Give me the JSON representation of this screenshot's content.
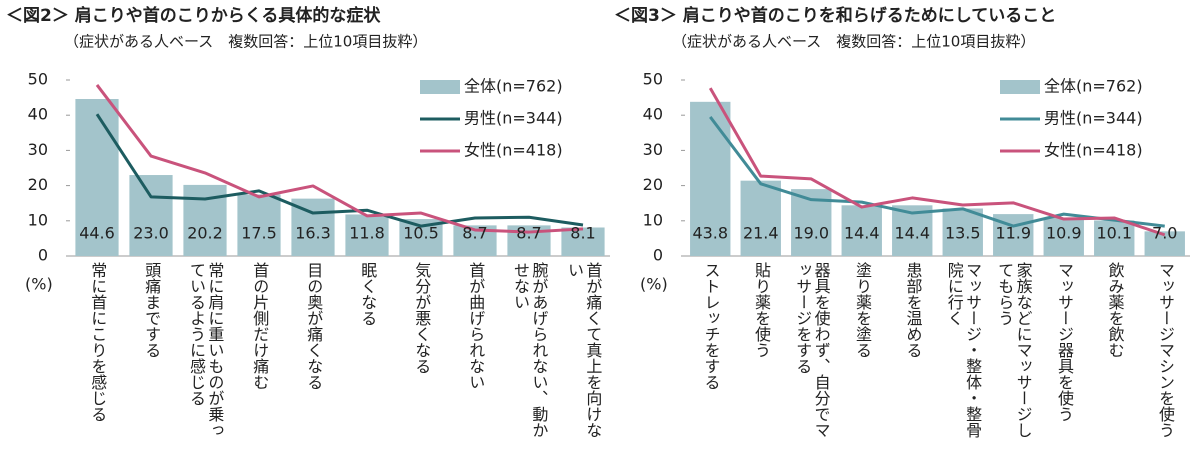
{
  "chart_data": [
    {
      "type": "combo",
      "title": "＜図2＞ 肩こりや首のこりからくる具体的な症状",
      "subtitle": "（症状がある人ベース　複数回答：上位10項目抜粋）",
      "ylabel": "(%)",
      "categories": [
        "常に首にこりを感じる",
        "頭痛までする",
        "常に肩に重いものが乗っているように感じる",
        "首の片側だけ痛む",
        "目の奥が痛くなる",
        "眠くなる",
        "気分が悪くなる",
        "首が曲げられない",
        "腕があげられない、動かせない",
        "首が痛くて真上を向けない"
      ],
      "series": [
        {
          "name": "全体(n=762)",
          "type": "bar",
          "color": "#a3c4cb",
          "values": [
            44.6,
            23.0,
            20.2,
            17.5,
            16.3,
            11.8,
            10.5,
            8.7,
            8.7,
            8.1
          ],
          "value_labels": [
            "44.6",
            "23.0",
            "20.2",
            "17.5",
            "16.3",
            "11.8",
            "10.5",
            "8.7",
            "8.7",
            "8.1"
          ]
        },
        {
          "name": "男性(n=344)",
          "type": "line",
          "color": "#1d5c60",
          "values": [
            40.3,
            16.8,
            16.2,
            18.5,
            12.2,
            13.0,
            8.5,
            10.8,
            11.0,
            8.8
          ]
        },
        {
          "name": "女性(n=418)",
          "type": "line",
          "color": "#c9537c",
          "values": [
            48.6,
            28.4,
            23.6,
            16.8,
            19.9,
            11.4,
            12.2,
            7.4,
            6.8,
            7.7
          ]
        }
      ],
      "ylim": [
        0,
        50
      ],
      "yticks": [
        0,
        10,
        20,
        30,
        40,
        50
      ],
      "legend": "top-right"
    },
    {
      "type": "combo",
      "title": "＜図3＞ 肩こりや首のこりを和らげるためにしていること",
      "subtitle": "（症状がある人ベース　複数回答：上位10項目抜粋）",
      "ylabel": "(%)",
      "categories": [
        "ストレッチをする",
        "貼り薬を使う",
        "器具を使わず、自分でマッサージをする",
        "塗り薬を塗る",
        "患部を温める",
        "マッサージ・整体・整骨院に行く",
        "家族などにマッサージしてもらう",
        "マッサージ器具を使う",
        "飲み薬を飲む",
        "マッサージマシンを使う"
      ],
      "series": [
        {
          "name": "全体(n=762)",
          "type": "bar",
          "color": "#a3c4cb",
          "values": [
            43.8,
            21.4,
            19.0,
            14.4,
            14.4,
            13.5,
            11.9,
            10.9,
            10.1,
            7.0
          ],
          "value_labels": [
            "43.8",
            "21.4",
            "19.0",
            "14.4",
            "14.4",
            "13.5",
            "11.9",
            "10.9",
            "10.1",
            "7.0"
          ]
        },
        {
          "name": "男性(n=344)",
          "type": "line",
          "color": "#418b97",
          "values": [
            39.5,
            20.5,
            16.0,
            15.3,
            12.2,
            13.4,
            8.5,
            11.9,
            10.2,
            8.5
          ]
        },
        {
          "name": "女性(n=418)",
          "type": "line",
          "color": "#c9537c",
          "values": [
            47.7,
            22.7,
            21.9,
            13.9,
            16.5,
            14.5,
            15.1,
            10.5,
            10.8,
            6.0
          ]
        }
      ],
      "ylim": [
        0,
        50
      ],
      "yticks": [
        0,
        10,
        20,
        30,
        40,
        50
      ],
      "legend": "top-right"
    }
  ]
}
